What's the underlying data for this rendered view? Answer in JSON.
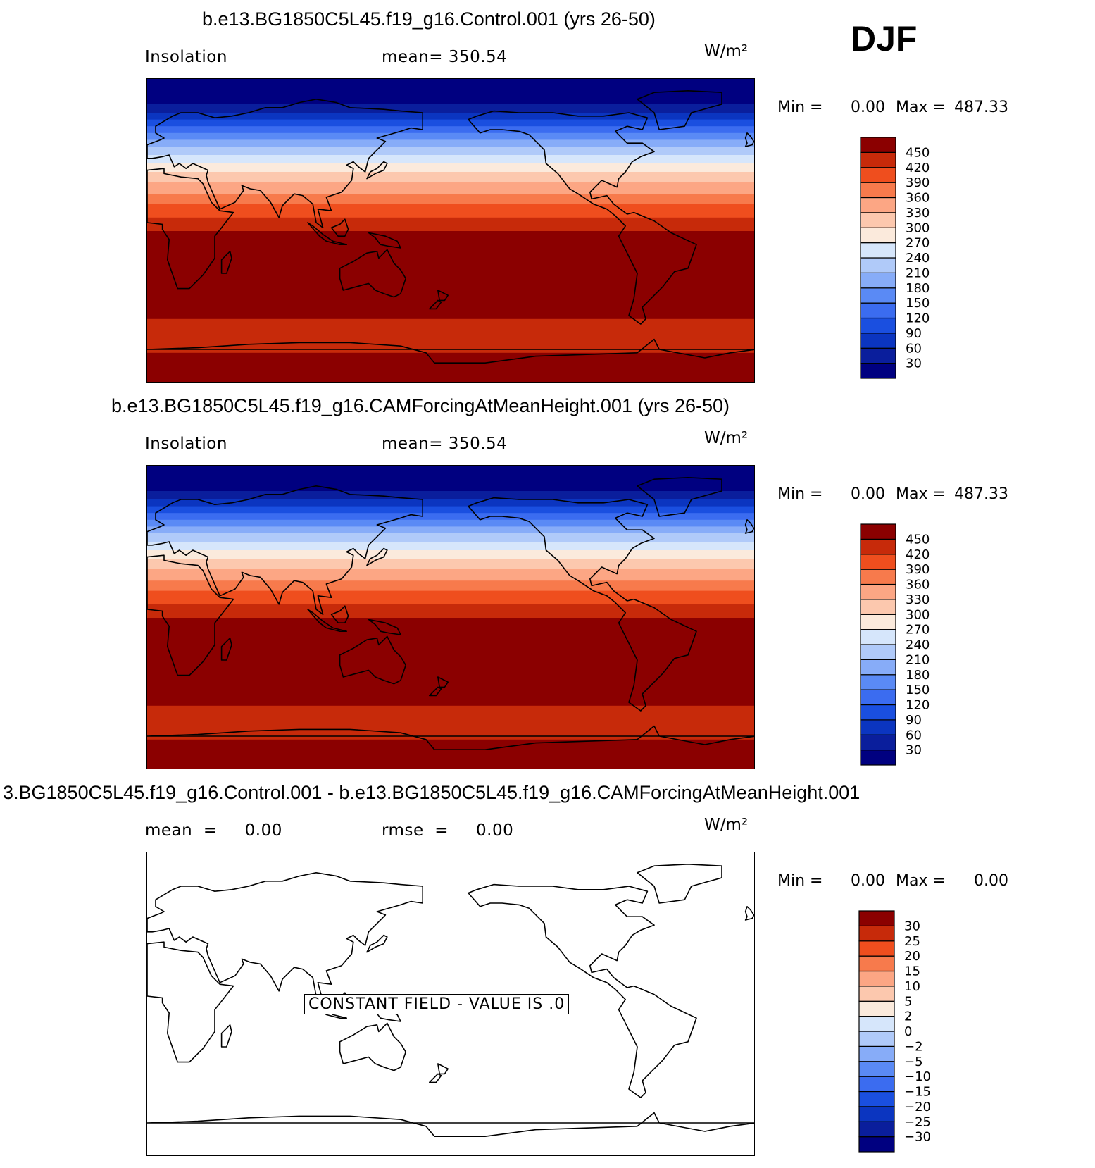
{
  "season": "DJF",
  "panels": [
    {
      "title": "b.e13.BG1850C5L45.f19_g16.Control.001 (yrs 26-50)",
      "left_label": "Insolation",
      "mid_label": "mean=  350.54",
      "units": "W/m²",
      "min_label": "Min  =",
      "min_value": "0.00",
      "max_label": "Max  =",
      "max_value": "487.33"
    },
    {
      "title": "b.e13.BG1850C5L45.f19_g16.CAMForcingAtMeanHeight.001 (yrs 26-50)",
      "left_label": "Insolation",
      "mid_label": "mean=  350.54",
      "units": "W/m²",
      "min_label": "Min  =",
      "min_value": "0.00",
      "max_label": "Max  =",
      "max_value": "487.33"
    },
    {
      "title": "3.BG1850C5L45.f19_g16.Control.001 - b.e13.BG1850C5L45.f19_g16.CAMForcingAtMeanHeight.001",
      "left_label": "mean  =     0.00",
      "mid_label": "rmse  =     0.00",
      "units": "W/m²",
      "min_label": "Min  =",
      "min_value": "0.00",
      "max_label": "Max  =",
      "max_value": "0.00",
      "annotation": "CONSTANT FIELD - VALUE IS .0"
    }
  ],
  "chart_data": [
    {
      "type": "heatmap",
      "title": "b.e13.BG1850C5L45.f19_g16.Control.001 (yrs 26-50)",
      "variable": "Insolation",
      "units": "W/m²",
      "mean": 350.54,
      "min": 0.0,
      "max": 487.33,
      "latitude_range": [
        -90,
        90
      ],
      "longitude_range": [
        0,
        360
      ],
      "zonal_bands": [
        {
          "lat_from": 90,
          "lat_to": 75,
          "value": 15
        },
        {
          "lat_from": 75,
          "lat_to": 70,
          "value": 45
        },
        {
          "lat_from": 70,
          "lat_to": 66,
          "value": 75
        },
        {
          "lat_from": 66,
          "lat_to": 62,
          "value": 105
        },
        {
          "lat_from": 62,
          "lat_to": 58,
          "value": 135
        },
        {
          "lat_from": 58,
          "lat_to": 54,
          "value": 165
        },
        {
          "lat_from": 54,
          "lat_to": 50,
          "value": 195
        },
        {
          "lat_from": 50,
          "lat_to": 45,
          "value": 225
        },
        {
          "lat_from": 45,
          "lat_to": 40,
          "value": 255
        },
        {
          "lat_from": 40,
          "lat_to": 35,
          "value": 285
        },
        {
          "lat_from": 35,
          "lat_to": 29,
          "value": 315
        },
        {
          "lat_from": 29,
          "lat_to": 22,
          "value": 345
        },
        {
          "lat_from": 22,
          "lat_to": 16,
          "value": 375
        },
        {
          "lat_from": 16,
          "lat_to": 8,
          "value": 405
        },
        {
          "lat_from": 8,
          "lat_to": 0,
          "value": 435
        },
        {
          "lat_from": 0,
          "lat_to": -52,
          "value": 465
        },
        {
          "lat_from": -52,
          "lat_to": -72,
          "value": 435
        },
        {
          "lat_from": -72,
          "lat_to": -90,
          "value": 465
        }
      ],
      "colorbar": {
        "levels": [
          "30",
          "60",
          "90",
          "120",
          "150",
          "180",
          "210",
          "240",
          "270",
          "300",
          "330",
          "360",
          "390",
          "420",
          "450"
        ],
        "colors": [
          "#000080",
          "#0a1e9c",
          "#0b35c0",
          "#1a4fe0",
          "#3b6cf0",
          "#5a8af5",
          "#87acf8",
          "#b0caf9",
          "#d6e6fb",
          "#fbeadc",
          "#fcc8ae",
          "#fca684",
          "#f77a4c",
          "#ef4e1e",
          "#c72a0a",
          "#8b0000"
        ]
      }
    },
    {
      "type": "heatmap",
      "title": "b.e13.BG1850C5L45.f19_g16.CAMForcingAtMeanHeight.001 (yrs 26-50)",
      "variable": "Insolation",
      "units": "W/m²",
      "mean": 350.54,
      "min": 0.0,
      "max": 487.33,
      "same_field_as_panel": 0,
      "colorbar": {
        "levels": [
          "30",
          "60",
          "90",
          "120",
          "150",
          "180",
          "210",
          "240",
          "270",
          "300",
          "330",
          "360",
          "390",
          "420",
          "450"
        ],
        "colors": [
          "#000080",
          "#0a1e9c",
          "#0b35c0",
          "#1a4fe0",
          "#3b6cf0",
          "#5a8af5",
          "#87acf8",
          "#b0caf9",
          "#d6e6fb",
          "#fbeadc",
          "#fcc8ae",
          "#fca684",
          "#f77a4c",
          "#ef4e1e",
          "#c72a0a",
          "#8b0000"
        ]
      }
    },
    {
      "type": "heatmap",
      "title": "3.BG1850C5L45.f19_g16.Control.001 - b.e13.BG1850C5L45.f19_g16.CAMForcingAtMeanHeight.001",
      "units": "W/m²",
      "mean": 0.0,
      "rmse": 0.0,
      "min": 0.0,
      "max": 0.0,
      "constant_value": 0.0,
      "colorbar": {
        "levels": [
          "−30",
          "−25",
          "−20",
          "−15",
          "−10",
          "−5",
          "−2",
          "0",
          "2",
          "5",
          "10",
          "15",
          "20",
          "25",
          "30"
        ],
        "colors": [
          "#000080",
          "#0a1e9c",
          "#0b35c0",
          "#1a4fe0",
          "#3b6cf0",
          "#5a8af5",
          "#87acf8",
          "#b0caf9",
          "#d6e6fb",
          "#fbeadc",
          "#fcc8ae",
          "#fca684",
          "#f77a4c",
          "#ef4e1e",
          "#c72a0a",
          "#8b0000"
        ]
      }
    }
  ]
}
